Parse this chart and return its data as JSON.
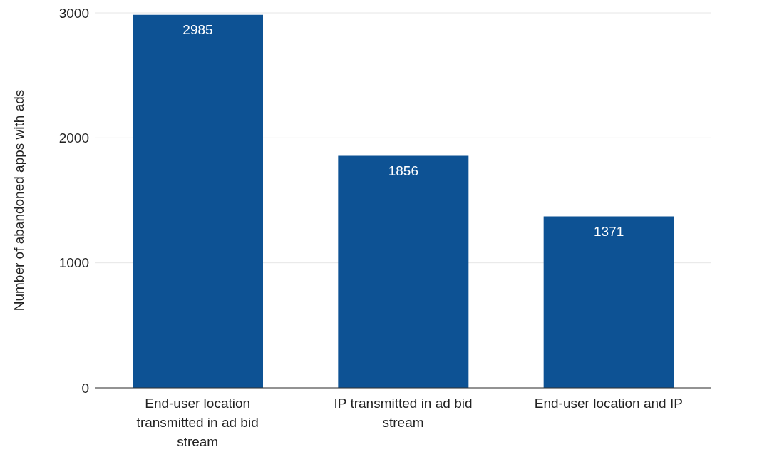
{
  "chart_data": {
    "type": "bar",
    "ylabel": "Number of abandoned apps with ads",
    "categories": [
      "End-user location transmitted in ad bid stream",
      "IP transmitted in ad bid stream",
      "End-user location and IP"
    ],
    "values": [
      2985,
      1856,
      1371
    ],
    "color": "#0d5294",
    "ylim": [
      0,
      3000
    ],
    "yticks": [
      0,
      1000,
      2000,
      3000
    ],
    "grid": "y",
    "data_labels": true
  }
}
